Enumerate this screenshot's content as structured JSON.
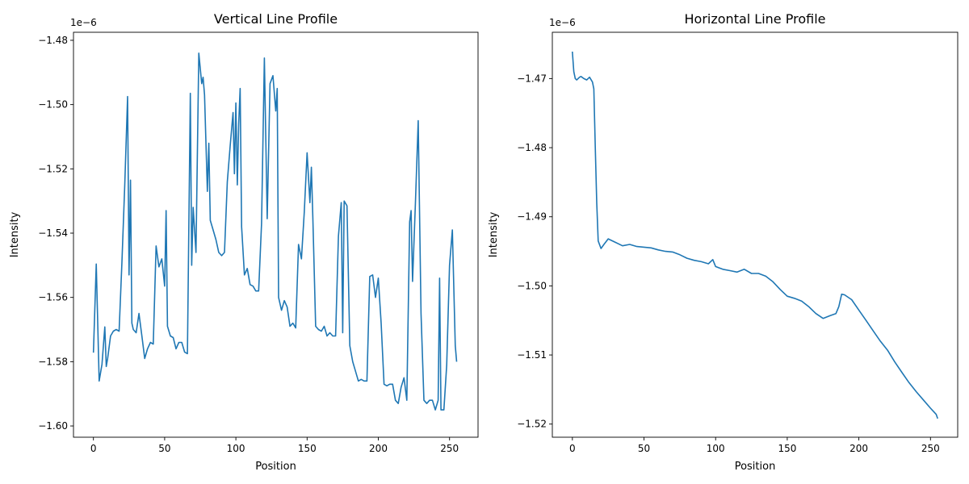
{
  "chart_data": [
    {
      "type": "line",
      "title": "Vertical Line Profile",
      "xlabel": "Position",
      "ylabel": "Intensity",
      "offset_text": "1e−6",
      "color": "#1f77b4",
      "xlim": [
        -14,
        270
      ],
      "ylim": [
        -1.6035,
        -1.4775
      ],
      "xticks": [
        0,
        50,
        100,
        150,
        200,
        250
      ],
      "xtick_labels": [
        "0",
        "50",
        "100",
        "150",
        "200",
        "250"
      ],
      "yticks": [
        -1.6,
        -1.58,
        -1.56,
        -1.54,
        -1.52,
        -1.5,
        -1.48
      ],
      "ytick_labels": [
        "−1.60",
        "−1.58",
        "−1.56",
        "−1.54",
        "−1.52",
        "−1.50",
        "−1.48"
      ],
      "series": [
        {
          "x": [
            0,
            2,
            4,
            6,
            8,
            9,
            10,
            12,
            14,
            16,
            18,
            20,
            22,
            24,
            25,
            26,
            27,
            28,
            30,
            32,
            34,
            36,
            38,
            40,
            42,
            44,
            46,
            48,
            50,
            51,
            52,
            54,
            56,
            58,
            60,
            62,
            64,
            66,
            68,
            69,
            70,
            72,
            74,
            76,
            77,
            78,
            80,
            81,
            82,
            84,
            86,
            88,
            90,
            92,
            94,
            96,
            98,
            99,
            100,
            101,
            102,
            103,
            104,
            106,
            108,
            110,
            112,
            114,
            116,
            118,
            120,
            122,
            124,
            126,
            128,
            129,
            130,
            132,
            134,
            136,
            138,
            140,
            142,
            144,
            146,
            148,
            150,
            152,
            153,
            154,
            156,
            158,
            160,
            162,
            164,
            166,
            168,
            170,
            172,
            174,
            175,
            176,
            178,
            180,
            182,
            184,
            186,
            188,
            190,
            192,
            194,
            196,
            198,
            200,
            202,
            204,
            206,
            208,
            210,
            212,
            214,
            216,
            218,
            220,
            222,
            223,
            224,
            226,
            228,
            230,
            232,
            234,
            236,
            238,
            240,
            242,
            243,
            244,
            246,
            248,
            250,
            252,
            254,
            255
          ],
          "y": [
            -1.5772,
            -1.5496,
            -1.586,
            -1.5808,
            -1.5692,
            -1.5815,
            -1.579,
            -1.572,
            -1.5705,
            -1.57,
            -1.5705,
            -1.549,
            -1.525,
            -1.4975,
            -1.553,
            -1.5235,
            -1.568,
            -1.57,
            -1.571,
            -1.565,
            -1.572,
            -1.579,
            -1.576,
            -1.574,
            -1.5745,
            -1.544,
            -1.5505,
            -1.548,
            -1.5565,
            -1.533,
            -1.569,
            -1.572,
            -1.5725,
            -1.576,
            -1.574,
            -1.574,
            -1.577,
            -1.5775,
            -1.4965,
            -1.55,
            -1.532,
            -1.546,
            -1.484,
            -1.4935,
            -1.4915,
            -1.497,
            -1.527,
            -1.512,
            -1.536,
            -1.539,
            -1.542,
            -1.546,
            -1.547,
            -1.546,
            -1.524,
            -1.513,
            -1.5025,
            -1.5215,
            -1.4995,
            -1.525,
            -1.506,
            -1.495,
            -1.538,
            -1.553,
            -1.551,
            -1.556,
            -1.5565,
            -1.558,
            -1.558,
            -1.537,
            -1.4855,
            -1.5355,
            -1.4935,
            -1.491,
            -1.502,
            -1.495,
            -1.56,
            -1.564,
            -1.561,
            -1.563,
            -1.569,
            -1.568,
            -1.5695,
            -1.5435,
            -1.548,
            -1.5335,
            -1.515,
            -1.5305,
            -1.5195,
            -1.535,
            -1.569,
            -1.57,
            -1.5705,
            -1.569,
            -1.572,
            -1.571,
            -1.572,
            -1.572,
            -1.541,
            -1.5305,
            -1.571,
            -1.53,
            -1.5315,
            -1.575,
            -1.58,
            -1.583,
            -1.586,
            -1.5855,
            -1.586,
            -1.586,
            -1.5535,
            -1.553,
            -1.56,
            -1.554,
            -1.568,
            -1.587,
            -1.5875,
            -1.587,
            -1.587,
            -1.592,
            -1.593,
            -1.588,
            -1.585,
            -1.592,
            -1.5365,
            -1.533,
            -1.555,
            -1.531,
            -1.505,
            -1.565,
            -1.592,
            -1.593,
            -1.592,
            -1.592,
            -1.595,
            -1.592,
            -1.554,
            -1.595,
            -1.595,
            -1.581,
            -1.55,
            -1.539,
            -1.575,
            -1.58
          ]
        }
      ]
    },
    {
      "type": "line",
      "title": "Horizontal Line Profile",
      "xlabel": "Position",
      "ylabel": "Intensity",
      "offset_text": "1e−6",
      "color": "#1f77b4",
      "xlim": [
        -14,
        269
      ],
      "ylim": [
        -1.5219,
        -1.4633
      ],
      "xticks": [
        0,
        50,
        100,
        150,
        200,
        250
      ],
      "xtick_labels": [
        "0",
        "50",
        "100",
        "150",
        "200",
        "250"
      ],
      "yticks": [
        -1.52,
        -1.51,
        -1.5,
        -1.49,
        -1.48,
        -1.47
      ],
      "ytick_labels": [
        "−1.52",
        "−1.51",
        "−1.50",
        "−1.49",
        "−1.48",
        "−1.47"
      ],
      "series": [
        {
          "x": [
            0,
            1,
            2,
            3,
            4,
            5,
            6,
            8,
            10,
            12,
            14,
            15,
            16,
            17,
            18,
            20,
            22,
            25,
            30,
            35,
            40,
            45,
            50,
            55,
            60,
            65,
            70,
            75,
            80,
            85,
            90,
            95,
            98,
            100,
            105,
            110,
            115,
            120,
            125,
            130,
            135,
            140,
            145,
            150,
            155,
            160,
            165,
            170,
            175,
            180,
            184,
            186,
            188,
            190,
            195,
            200,
            205,
            210,
            215,
            220,
            225,
            230,
            235,
            240,
            245,
            250,
            254,
            255
          ],
          "y": [
            -1.4661,
            -1.469,
            -1.47,
            -1.4702,
            -1.47,
            -1.4698,
            -1.4697,
            -1.47,
            -1.4702,
            -1.4698,
            -1.4705,
            -1.4715,
            -1.48,
            -1.488,
            -1.4935,
            -1.4946,
            -1.494,
            -1.4932,
            -1.4937,
            -1.4942,
            -1.494,
            -1.4943,
            -1.4944,
            -1.4945,
            -1.4948,
            -1.495,
            -1.4951,
            -1.4955,
            -1.496,
            -1.4963,
            -1.4965,
            -1.4968,
            -1.4962,
            -1.4972,
            -1.4976,
            -1.4978,
            -1.498,
            -1.4976,
            -1.4982,
            -1.4982,
            -1.4986,
            -1.4994,
            -1.5005,
            -1.5015,
            -1.5018,
            -1.5022,
            -1.503,
            -1.504,
            -1.5047,
            -1.5043,
            -1.504,
            -1.503,
            -1.5012,
            -1.5013,
            -1.502,
            -1.5035,
            -1.505,
            -1.5065,
            -1.508,
            -1.5093,
            -1.511,
            -1.5125,
            -1.514,
            -1.5153,
            -1.5165,
            -1.5177,
            -1.5186,
            -1.5192
          ]
        }
      ]
    }
  ]
}
